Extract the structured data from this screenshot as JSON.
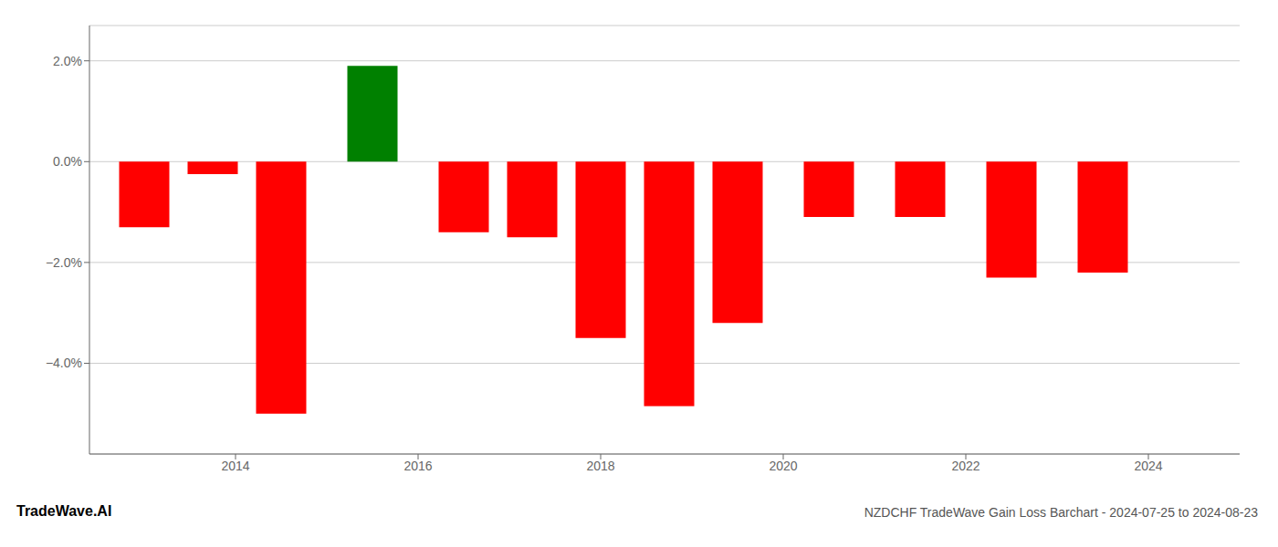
{
  "chart_data": {
    "type": "bar",
    "title": "NZDCHF TradeWave Gain Loss Barchart - 2024-07-25 to 2024-08-23",
    "annotations": [
      "TradeWave.AI"
    ],
    "x": [
      2013.0,
      2013.75,
      2014.5,
      2015.5,
      2016.5,
      2017.25,
      2018.0,
      2018.75,
      2019.5,
      2020.5,
      2021.5,
      2022.5,
      2023.5
    ],
    "values": [
      -1.3,
      -0.25,
      -5.0,
      1.9,
      -1.4,
      -1.5,
      -3.5,
      -4.85,
      -3.2,
      -1.1,
      -1.1,
      -2.3,
      -2.2
    ],
    "colors": [
      "#ff0000",
      "#ff0000",
      "#ff0000",
      "#008000",
      "#ff0000",
      "#ff0000",
      "#ff0000",
      "#ff0000",
      "#ff0000",
      "#ff0000",
      "#ff0000",
      "#ff0000",
      "#ff0000"
    ],
    "xlim": [
      2012.4,
      2025.0
    ],
    "ylim": [
      -5.8,
      2.7
    ],
    "xticks": [
      2014,
      2016,
      2018,
      2020,
      2022,
      2024
    ],
    "yticks": [
      {
        "value": 2.0,
        "label": "2.0%"
      },
      {
        "value": 0.0,
        "label": "0.0%"
      },
      {
        "value": -2.0,
        "label": "−2.0%"
      },
      {
        "value": -4.0,
        "label": "−4.0%"
      }
    ],
    "grid": true
  }
}
